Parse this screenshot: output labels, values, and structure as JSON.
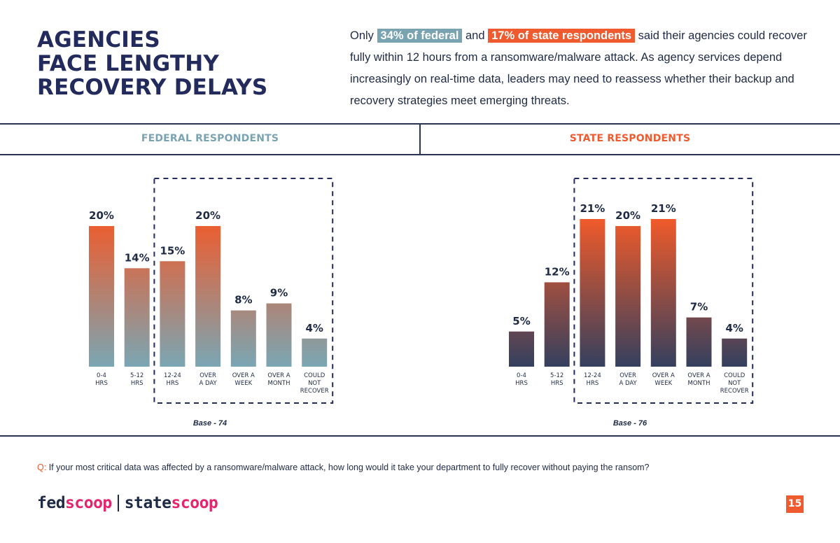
{
  "title_lines": [
    "AGENCIES",
    "FACE LENGTHY",
    "RECOVERY DELAYS"
  ],
  "intro": {
    "before": "Only",
    "fed_highlight": "34% of federal",
    "middle": "and",
    "state_highlight": "17% of state respondents",
    "after": "said their agencies could recover fully within 12 hours from a ransomware/malware attack. As agency services depend increasingly on real-time data, leaders may need to reassess whether their backup and recovery strategies meet emerging threats."
  },
  "panels": {
    "federal_header": "FEDERAL RESPONDENTS",
    "state_header": "STATE RESPONDENTS"
  },
  "colors": {
    "navy": "#232a5c",
    "federal_teal": "#7aa3b1",
    "state_orange": "#ef5a2e",
    "bar_dark": "#3a4663",
    "brand_pink": "#e8236d"
  },
  "chart_data": [
    {
      "type": "bar",
      "categories": [
        [
          "0-4",
          "HRS"
        ],
        [
          "5-12",
          "HRS"
        ],
        [
          "12-24",
          "HRS"
        ],
        [
          "OVER",
          "A DAY"
        ],
        [
          "OVER A",
          "WEEK"
        ],
        [
          "OVER A",
          "MONTH"
        ],
        [
          "COULD",
          "NOT",
          "RECOVER"
        ]
      ],
      "values": [
        20,
        14,
        15,
        20,
        8,
        9,
        4
      ],
      "value_labels": [
        "20%",
        "14%",
        "15%",
        "20%",
        "8%",
        "9%",
        "4%"
      ],
      "ylim": [
        0,
        21
      ],
      "highlight_range": [
        2,
        6
      ],
      "base_label": "Base - 74",
      "gradient": [
        "#f05a2a",
        "#7aa6b3"
      ]
    },
    {
      "type": "bar",
      "categories": [
        [
          "0-4",
          "HRS"
        ],
        [
          "5-12",
          "HRS"
        ],
        [
          "12-24",
          "HRS"
        ],
        [
          "OVER",
          "A DAY"
        ],
        [
          "OVER A",
          "WEEK"
        ],
        [
          "OVER A",
          "MONTH"
        ],
        [
          "COULD",
          "NOT",
          "RECOVER"
        ]
      ],
      "values": [
        5,
        12,
        21,
        20,
        21,
        7,
        4
      ],
      "value_labels": [
        "5%",
        "12%",
        "21%",
        "20%",
        "21%",
        "7%",
        "4%"
      ],
      "ylim": [
        0,
        21
      ],
      "highlight_range": [
        2,
        6
      ],
      "base_label": "Base - 76",
      "gradient": [
        "#f05a2a",
        "#34405e"
      ]
    }
  ],
  "footer": {
    "question_prefix": "Q:",
    "question_text": "If your most critical data was affected by a ransomware/malware attack, how long would it take your department to fully recover without paying the ransom?",
    "logo_fed_a": "fed",
    "logo_fed_b": "scoop",
    "logo_state_a": "state",
    "logo_state_b": "scoop",
    "page_number": "15"
  }
}
